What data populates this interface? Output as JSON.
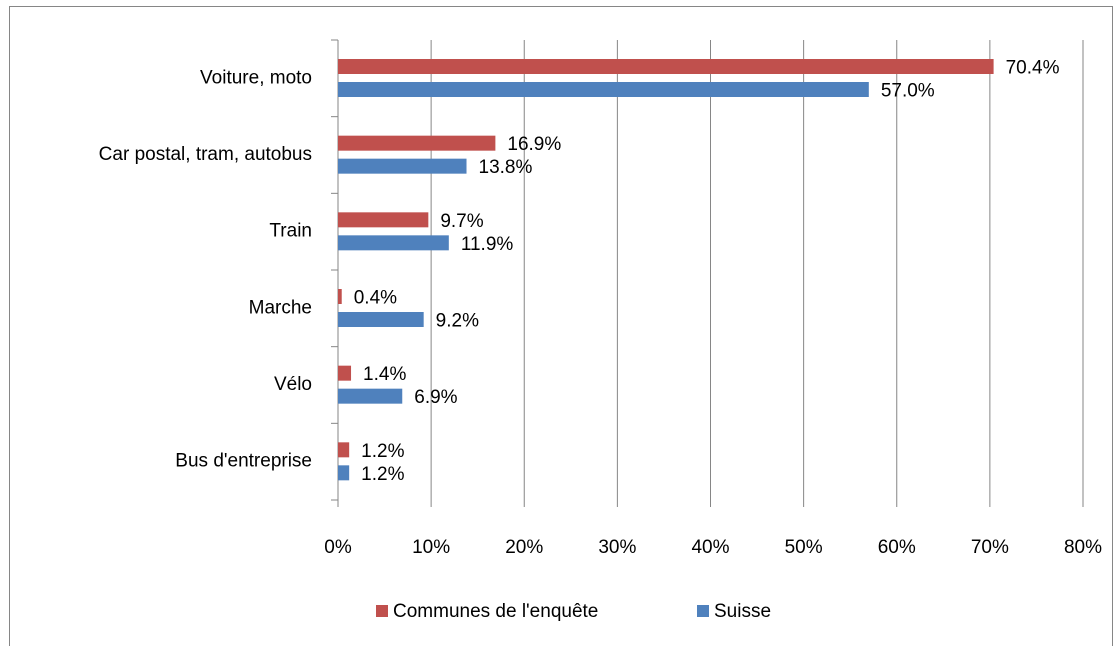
{
  "chart_data": {
    "type": "hbar",
    "categories": [
      "Voiture, moto",
      "Car postal, tram, autobus",
      "Train",
      "Marche",
      "Vélo",
      "Bus d'entreprise"
    ],
    "series": [
      {
        "name": "Communes de l'enquête",
        "color": "#c0504d",
        "values": [
          70.4,
          16.9,
          9.7,
          0.4,
          1.4,
          1.2
        ],
        "value_labels": [
          "70.4%",
          "16.9%",
          "9.7%",
          "0.4%",
          "1.4%",
          "1.2%"
        ]
      },
      {
        "name": "Suisse",
        "color": "#4f81bd",
        "values": [
          57.0,
          13.8,
          11.9,
          9.2,
          6.9,
          1.2
        ],
        "value_labels": [
          "57.0%",
          "13.8%",
          "11.9%",
          "9.2%",
          "6.9%",
          "1.2%"
        ]
      }
    ],
    "xlim": [
      0,
      80
    ],
    "xticks": [
      {
        "value": 0,
        "label": "0%"
      },
      {
        "value": 10,
        "label": "10%"
      },
      {
        "value": 20,
        "label": "20%"
      },
      {
        "value": 30,
        "label": "30%"
      },
      {
        "value": 40,
        "label": "40%"
      },
      {
        "value": 50,
        "label": "50%"
      },
      {
        "value": 60,
        "label": "60%"
      },
      {
        "value": 70,
        "label": "70%"
      },
      {
        "value": 80,
        "label": "80%"
      }
    ],
    "grid": true,
    "legend": "bottom"
  }
}
